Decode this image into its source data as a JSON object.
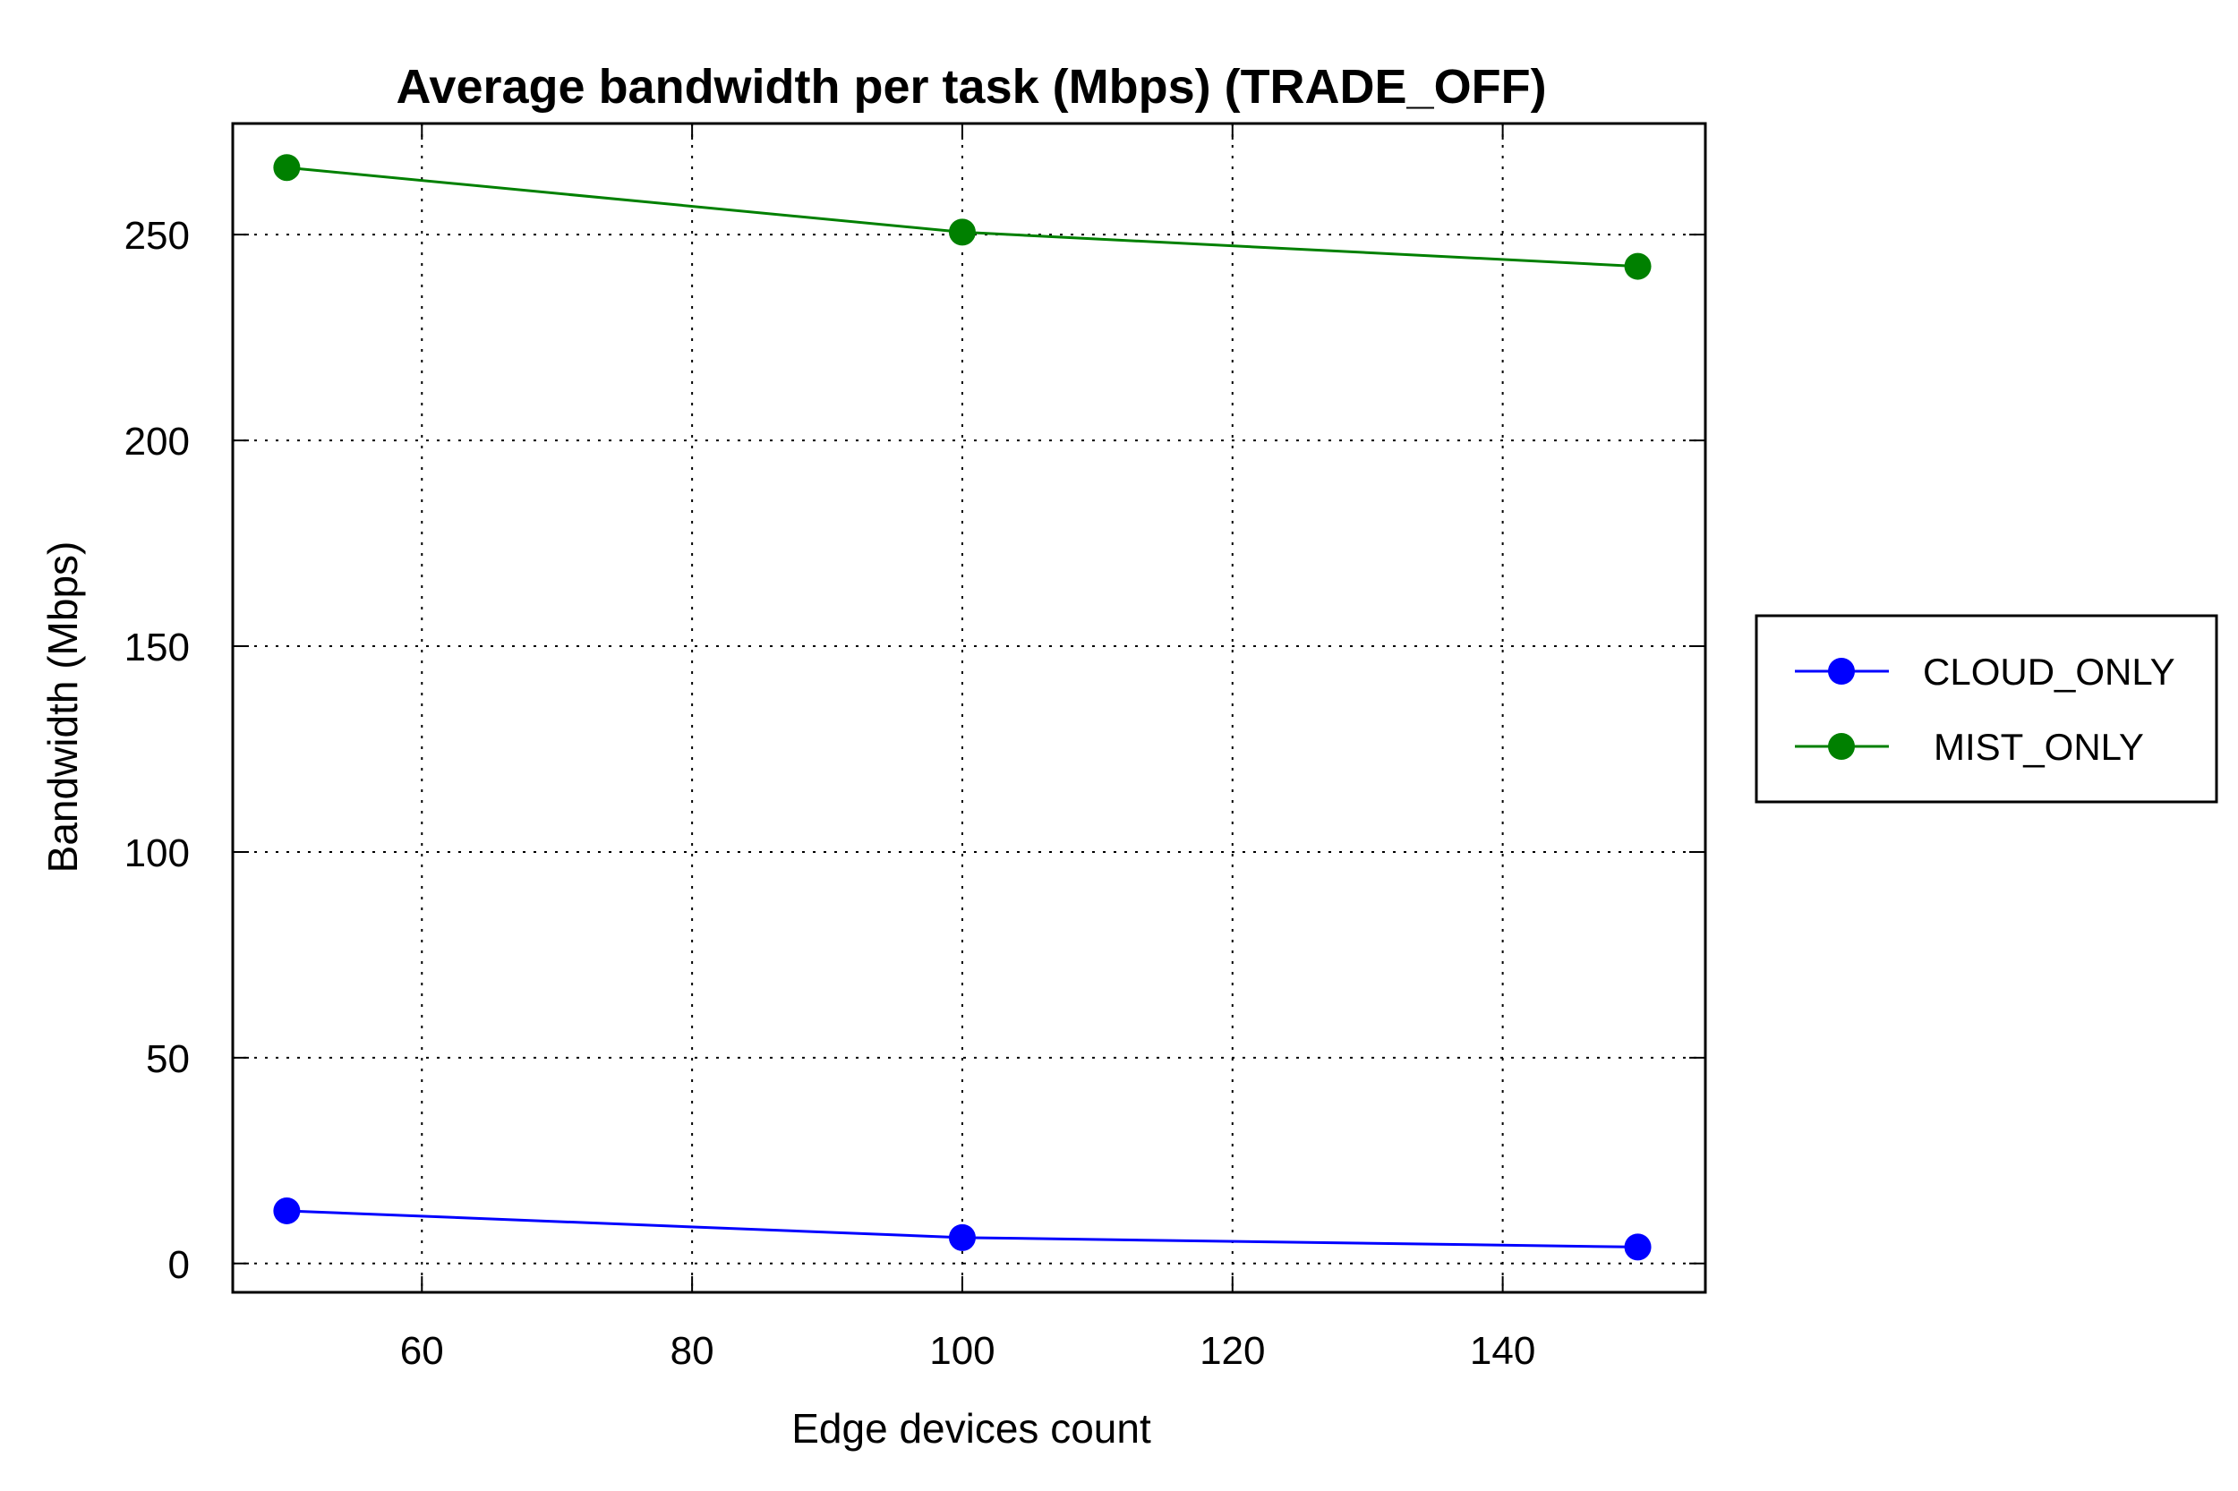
{
  "chart_data": {
    "type": "line",
    "title": "Average bandwidth per task (Mbps) (TRADE_OFF)",
    "xlabel": "Edge devices count",
    "ylabel": "Bandwidth (Mbps)",
    "xlim": [
      46,
      155
    ],
    "ylim": [
      -7,
      277
    ],
    "x_ticks": [
      60,
      80,
      100,
      120,
      140
    ],
    "y_ticks": [
      0,
      50,
      100,
      150,
      200,
      250
    ],
    "grid": true,
    "legend_position": "right",
    "x": [
      50,
      100,
      150
    ],
    "series": [
      {
        "name": "CLOUD_ONLY",
        "color": "#0000ff",
        "values": [
          12.8,
          6.3,
          4.0
        ]
      },
      {
        "name": "MIST_ONLY",
        "color": "#008000",
        "values": [
          266.3,
          250.6,
          242.3
        ]
      }
    ]
  }
}
